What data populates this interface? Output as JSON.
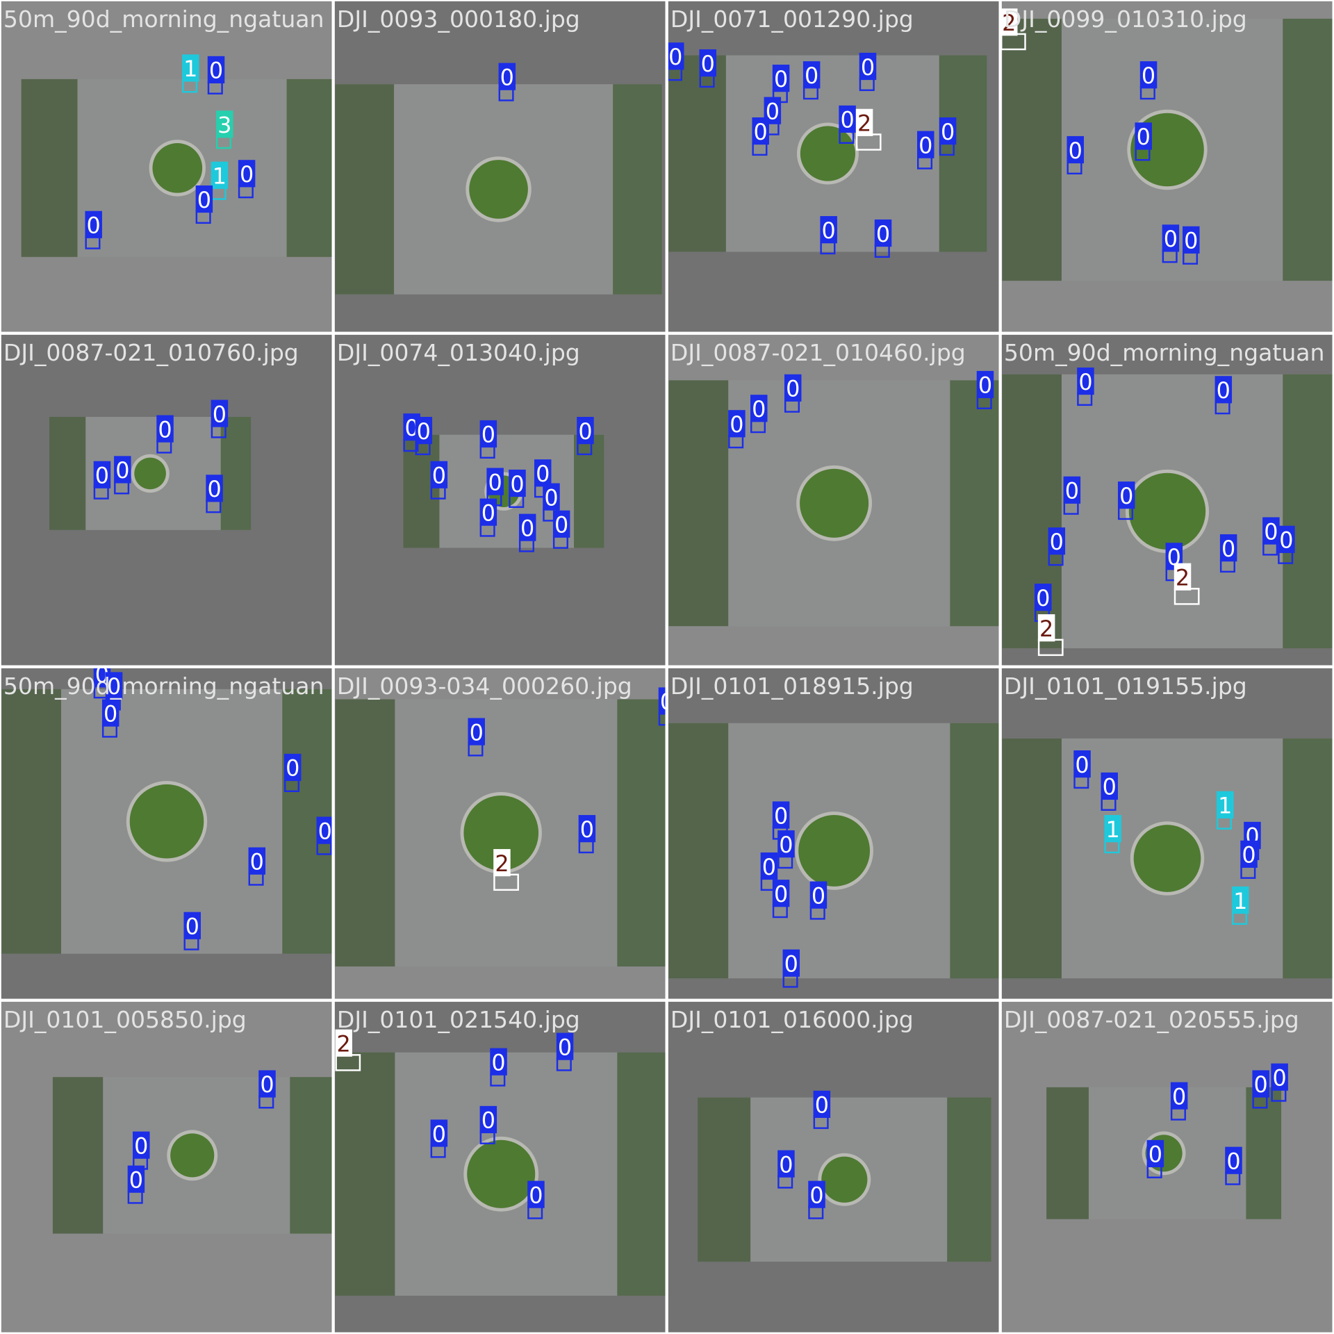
{
  "tiles": [
    {
      "filename": "50m_90d_morning_ngatuan",
      "labels": [
        "1",
        "0",
        "3",
        "1",
        "0",
        "0",
        "0"
      ]
    },
    {
      "filename": "DJI_0093_000180.jpg",
      "labels": [
        "0"
      ]
    },
    {
      "filename": "DJI_0071_001290.jpg",
      "labels": [
        "0",
        "0",
        "0",
        "0",
        "0",
        "0",
        "0",
        "0",
        "2",
        "0",
        "0",
        "0",
        "0"
      ]
    },
    {
      "filename": "DJI_0099_010310.jpg",
      "labels": [
        "2",
        "0",
        "0",
        "0",
        "0",
        "0"
      ]
    },
    {
      "filename": "DJI_0087-021_010760.jpg",
      "labels": [
        "0",
        "0",
        "0",
        "0",
        "0"
      ]
    },
    {
      "filename": "DJI_0074_013040.jpg",
      "labels": [
        "0",
        "0",
        "0",
        "0",
        "0",
        "0",
        "0",
        "0",
        "0",
        "0",
        "0",
        "0"
      ]
    },
    {
      "filename": "DJI_0087-021_010460.jpg",
      "labels": [
        "0",
        "0",
        "0",
        "0"
      ]
    },
    {
      "filename": "50m_90d_morning_ngatuan",
      "labels": [
        "0",
        "0",
        "0",
        "0",
        "0",
        "0",
        "0",
        "0",
        "0",
        "2",
        "0",
        "2"
      ]
    },
    {
      "filename": "50m_90d_morning_ngatuan",
      "labels": [
        "0",
        "0",
        "0",
        "0",
        "0",
        "0",
        "0"
      ]
    },
    {
      "filename": "DJI_0093-034_000260.jpg",
      "labels": [
        "0",
        "0",
        "0",
        "2"
      ]
    },
    {
      "filename": "DJI_0101_018915.jpg",
      "labels": [
        "0",
        "0",
        "0",
        "0",
        "0",
        "0"
      ]
    },
    {
      "filename": "DJI_0101_019155.jpg",
      "labels": [
        "0",
        "0",
        "1",
        "0",
        "0",
        "1",
        "1"
      ]
    },
    {
      "filename": "DJI_0101_005850.jpg",
      "labels": [
        "0",
        "0",
        "0"
      ]
    },
    {
      "filename": "DJI_0101_021540.jpg",
      "labels": [
        "2",
        "0",
        "0",
        "0",
        "0",
        "0"
      ]
    },
    {
      "filename": "DJI_0101_016000.jpg",
      "labels": [
        "0",
        "0",
        "0"
      ]
    },
    {
      "filename": "DJI_0087-021_020555.jpg",
      "labels": [
        "0",
        "0",
        "0",
        "0",
        "0"
      ]
    }
  ]
}
